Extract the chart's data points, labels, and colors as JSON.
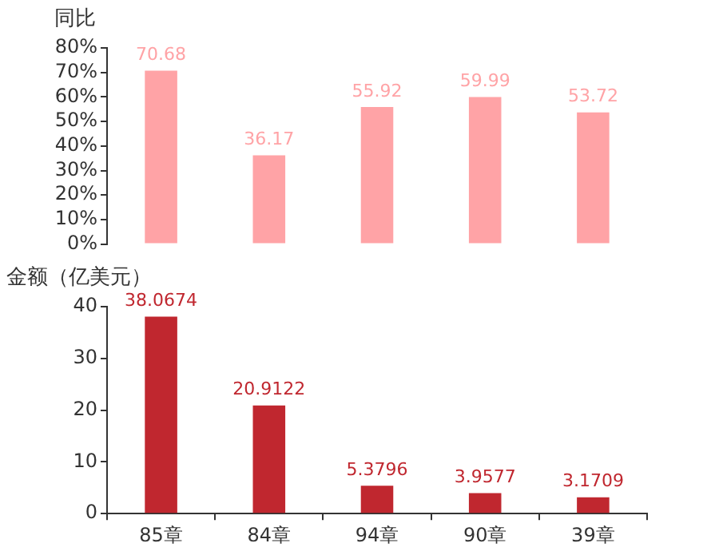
{
  "chart_data": [
    {
      "type": "bar",
      "ylabel": "同比",
      "categories": [
        null,
        null,
        null,
        null,
        null
      ],
      "series": [
        {
          "color": "#ffa3a6",
          "values": [
            70.68,
            36.17,
            55.92,
            59.99,
            53.72
          ]
        }
      ],
      "ylim": [
        0,
        80
      ],
      "yticks": [
        {
          "value": 0,
          "label": "0%"
        },
        {
          "value": 10,
          "label": "10%"
        },
        {
          "value": 20,
          "label": "20%"
        },
        {
          "value": 30,
          "label": "30%"
        },
        {
          "value": 40,
          "label": "40%"
        },
        {
          "value": 50,
          "label": "50%"
        },
        {
          "value": 60,
          "label": "60%"
        },
        {
          "value": 70,
          "label": "70%"
        },
        {
          "value": 80,
          "label": "80%"
        }
      ],
      "data_labels": true,
      "tick_labels": "y"
    },
    {
      "type": "bar",
      "ylabel": "金额（亿美元）",
      "categories": [
        "85章",
        "84章",
        "94章",
        "90章",
        "39章"
      ],
      "series": [
        {
          "color": "#c0272f",
          "values": [
            38.0674,
            20.9122,
            5.3796,
            3.9577,
            3.1709
          ]
        }
      ],
      "ylim": [
        0,
        40
      ],
      "yticks": [
        0,
        10,
        20,
        30,
        40
      ],
      "data_labels": true
    }
  ]
}
